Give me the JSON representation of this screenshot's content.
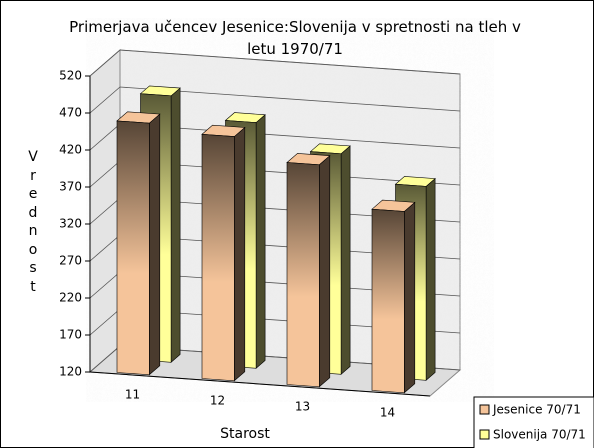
{
  "chart_data": {
    "type": "bar3d",
    "title": "Primerjava učencev Jesenice:Slovenija v spretnosti na tleh v letu 1970/71",
    "x_label": "Starost",
    "y_label": "Vrednost",
    "categories": [
      "11",
      "12",
      "13",
      "14"
    ],
    "series": [
      {
        "name": "Jesenice 70/71",
        "color": "#f5c49a",
        "values": [
          460,
          450,
          420,
          365
        ]
      },
      {
        "name": "Slovenija 70/71",
        "color": "#ffff99",
        "values": [
          480,
          452,
          418,
          382
        ]
      }
    ],
    "ylim": [
      120,
      520
    ],
    "yticks": [
      120,
      170,
      220,
      270,
      320,
      370,
      420,
      470,
      520
    ],
    "grid": true,
    "legend": "bottom-right"
  }
}
